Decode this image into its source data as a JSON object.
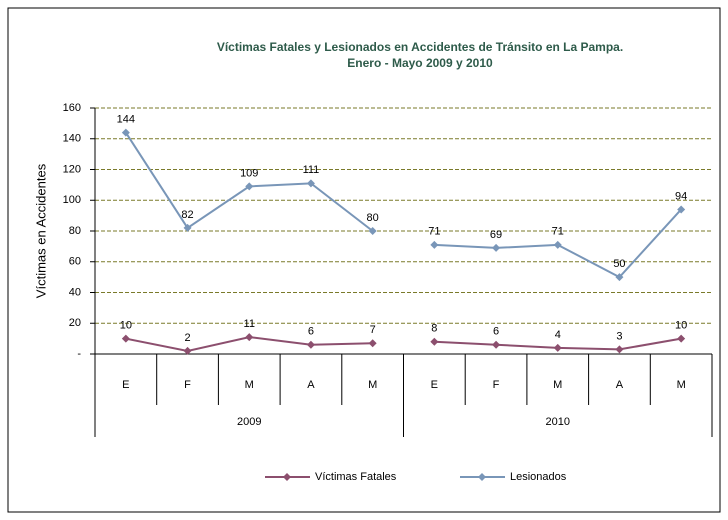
{
  "chart_data": {
    "type": "line",
    "title": "Víctimas Fatales y Lesionados en Accidentes de Tránsito en  La Pampa.",
    "subtitle": "Enero -  Mayo 2009 y 2010",
    "y_label": "Víctimas en Accidentes",
    "categories": [
      "E",
      "F",
      "M",
      "A",
      "M",
      "E",
      "F",
      "M",
      "A",
      "M"
    ],
    "groups": [
      {
        "label": "2009",
        "size": 5
      },
      {
        "label": "2010",
        "size": 5
      }
    ],
    "series": [
      {
        "name": "Víctimas Fatales",
        "color": "#8c4f6e",
        "values": [
          10,
          2,
          11,
          6,
          7,
          8,
          6,
          4,
          3,
          10
        ]
      },
      {
        "name": "Lesionados",
        "color": "#7996b8",
        "values": [
          144,
          82,
          109,
          111,
          80,
          71,
          69,
          71,
          50,
          94
        ]
      }
    ],
    "ylim": [
      0,
      160
    ],
    "yticks": [
      {
        "value": 0,
        "label": "-"
      },
      20,
      40,
      60,
      80,
      100,
      120,
      140,
      160
    ],
    "grid": true,
    "legend": "bottom"
  }
}
